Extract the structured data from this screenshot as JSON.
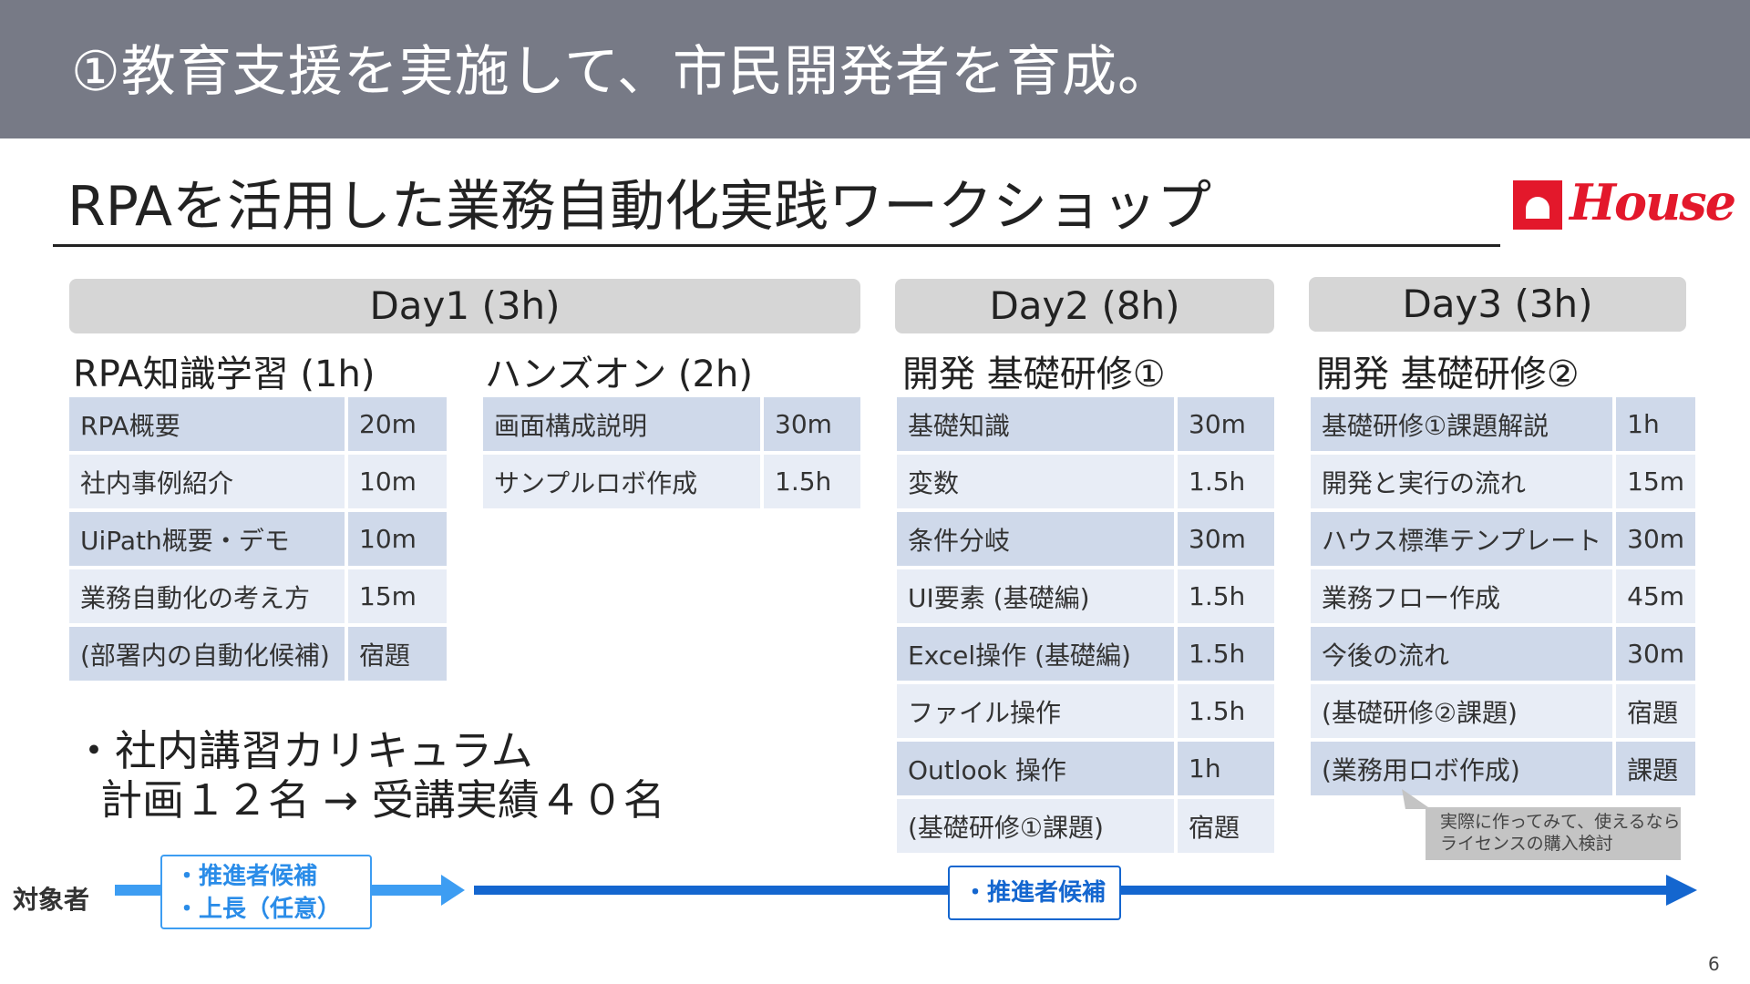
{
  "header": {
    "title": "①教育支援を実施して、市民開発者を育成。"
  },
  "subtitle": "RPAを活用した業務自動化実践ワークショップ",
  "logo": {
    "text": "House",
    "icon": "house-logo-icon",
    "color": "#e3182b"
  },
  "days": [
    {
      "label": "Day1 (3h)"
    },
    {
      "label": "Day2 (8h)"
    },
    {
      "label": "Day3 (3h)"
    }
  ],
  "sections": {
    "rpa": {
      "title": "RPA知識学習 (1h)",
      "rows": [
        {
          "item": "RPA概要",
          "time": "20m"
        },
        {
          "item": "社内事例紹介",
          "time": "10m"
        },
        {
          "item": "UiPath概要・デモ",
          "time": "10m"
        },
        {
          "item": "業務自動化の考え方",
          "time": "15m"
        },
        {
          "item": "(部署内の自動化候補)",
          "time": "宿題"
        }
      ]
    },
    "handson": {
      "title": "ハンズオン (2h)",
      "rows": [
        {
          "item": "画面構成説明",
          "time": "30m"
        },
        {
          "item": "サンプルロボ作成",
          "time": "1.5h"
        }
      ]
    },
    "dev1": {
      "title": "開発 基礎研修①",
      "rows": [
        {
          "item": "基礎知識",
          "time": "30m"
        },
        {
          "item": "変数",
          "time": "1.5h"
        },
        {
          "item": "条件分岐",
          "time": "30m"
        },
        {
          "item": "UI要素 (基礎編)",
          "time": "1.5h"
        },
        {
          "item": "Excel操作 (基礎編)",
          "time": "1.5h"
        },
        {
          "item": "ファイル操作",
          "time": "1.5h"
        },
        {
          "item": "Outlook 操作",
          "time": "1h"
        },
        {
          "item": "(基礎研修①課題)",
          "time": "宿題"
        }
      ]
    },
    "dev2": {
      "title": "開発 基礎研修②",
      "rows": [
        {
          "item": "基礎研修①課題解説",
          "time": "1h"
        },
        {
          "item": "開発と実行の流れ",
          "time": "15m"
        },
        {
          "item": "ハウス標準テンプレート",
          "time": "30m"
        },
        {
          "item": "業務フロー作成",
          "time": "45m"
        },
        {
          "item": "今後の流れ",
          "time": "30m"
        },
        {
          "item": "(基礎研修②課題)",
          "time": "宿題"
        },
        {
          "item": "(業務用ロボ作成)",
          "time": "課題"
        }
      ]
    }
  },
  "curriculum": {
    "line1": "・社内講習カリキュラム",
    "line2": "計画１２名 → 受講実績４０名"
  },
  "target": {
    "label": "対象者",
    "box1": [
      "・推進者候補",
      "・上長（任意）"
    ],
    "box2": "・推進者候補"
  },
  "callout": {
    "line1": "実際に作ってみて、使えるなら",
    "line2": "ライセンスの購入検討"
  },
  "colors": {
    "header_bg": "#777a86",
    "row_dark": "#cfd9ea",
    "row_light": "#e8edf6",
    "arrow_light": "#3d9df2",
    "arrow_dark": "#1466cf"
  },
  "page_number": "6"
}
